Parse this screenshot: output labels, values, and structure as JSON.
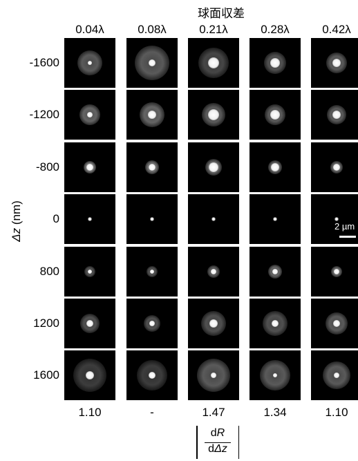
{
  "title": "球面収差",
  "columns": [
    "0.04λ",
    "0.08λ",
    "0.21λ",
    "0.28λ",
    "0.42λ"
  ],
  "rows": [
    "-1600",
    "-1200",
    "-800",
    "0",
    "800",
    "1200",
    "1600"
  ],
  "y_axis_label": "Δz (nm)",
  "scale_bar_label": "2 µm",
  "bottom_values": [
    "1.10",
    "-",
    "1.47",
    "1.34",
    "1.10"
  ],
  "formula": {
    "numerator_prefix": "d",
    "numerator_var": "R",
    "denominator_prefix": "d",
    "denominator_var": "Δz"
  },
  "colors": {
    "background": "#ffffff",
    "tile": "#000000",
    "spot": "#ffffff"
  }
}
